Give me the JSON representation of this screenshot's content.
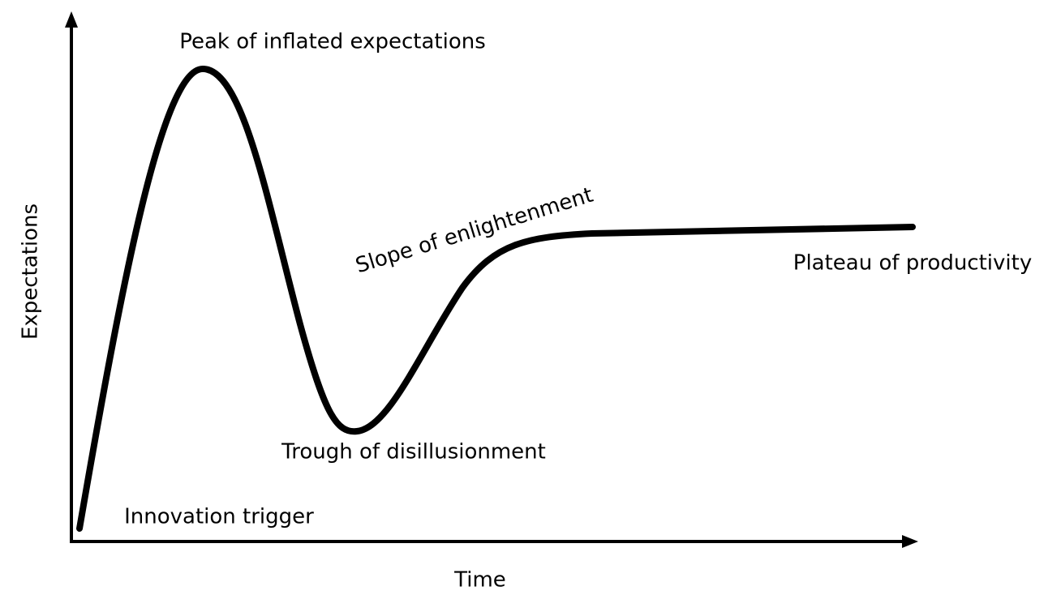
{
  "axes": {
    "x_label": "Time",
    "y_label": "Expectations"
  },
  "phases": {
    "innovation_trigger": "Innovation trigger",
    "peak": "Peak of inflated expectations",
    "trough": "Trough of disillusionment",
    "slope": "Slope of enlightenment",
    "plateau": "Plateau of productivity"
  }
}
